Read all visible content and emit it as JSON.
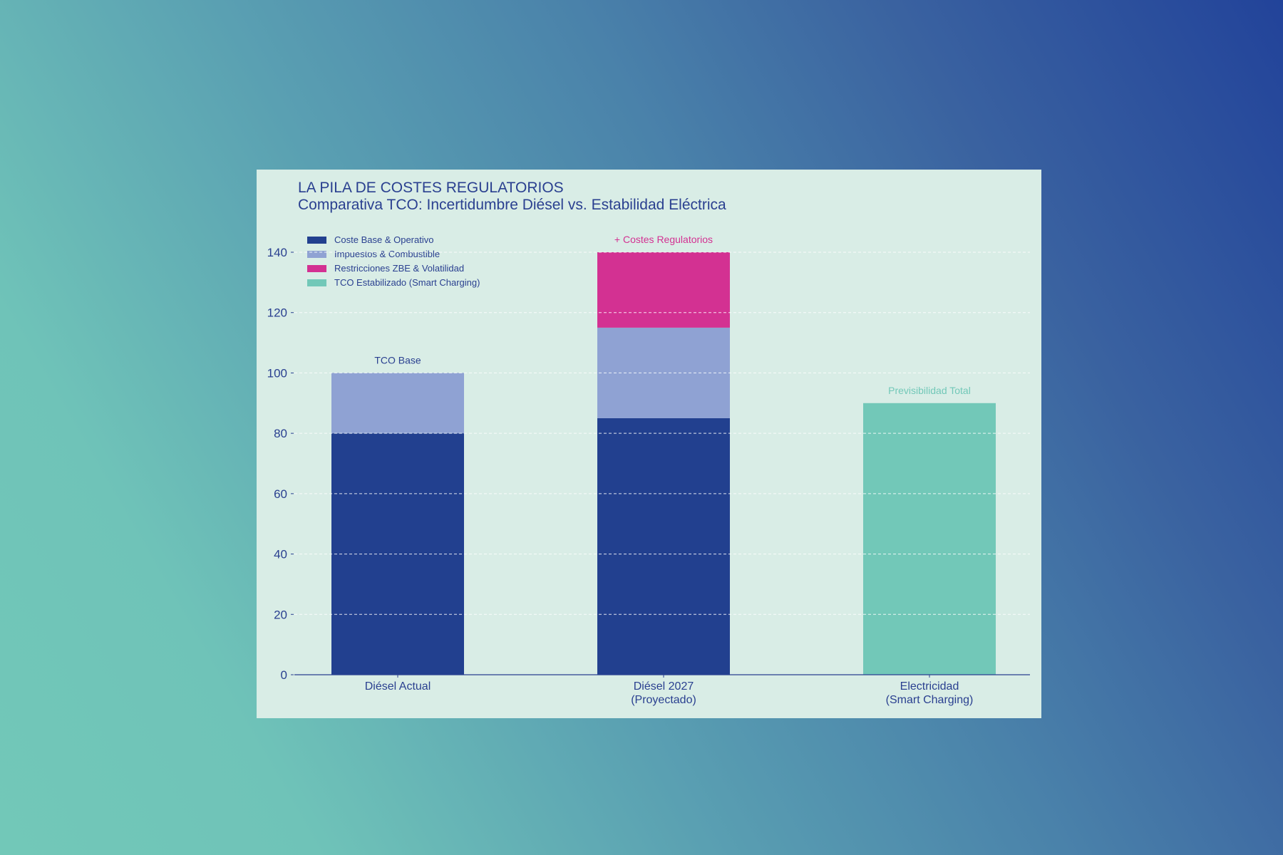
{
  "chart_data": {
    "type": "bar",
    "stacked": true,
    "title": "LA PILA DE COSTES REGULATORIOS",
    "subtitle": "Comparativa TCO: Incertidumbre Diésel vs. Estabilidad Eléctrica",
    "xlabel": "",
    "ylabel": "",
    "ylim": [
      0,
      140
    ],
    "yticks": [
      0,
      20,
      40,
      60,
      80,
      100,
      120,
      140
    ],
    "grid": true,
    "legend_position": "top-left",
    "categories": [
      [
        "Diésel Actual"
      ],
      [
        "Diésel 2027",
        "(Proyectado)"
      ],
      [
        "Electricidad",
        "(Smart Charging)"
      ]
    ],
    "series": [
      {
        "name": "Coste Base & Operativo",
        "color": "#22408f",
        "values": [
          80,
          85,
          0
        ]
      },
      {
        "name": "Impuestos & Combustible",
        "color": "#8fa2d3",
        "values": [
          20,
          30,
          0
        ]
      },
      {
        "name": "Restricciones ZBE & Volatilidad",
        "color": "#d33192",
        "values": [
          0,
          25,
          0
        ]
      },
      {
        "name": "TCO Estabilizado (Smart Charging)",
        "color": "#72c8b8",
        "values": [
          0,
          0,
          90
        ]
      }
    ],
    "annotations": [
      {
        "text": "TCO Base",
        "category": 0,
        "value": 100,
        "color": "#2a4090"
      },
      {
        "text": "+ Costes Regulatorios",
        "category": 1,
        "value": 140,
        "color": "#d33192"
      },
      {
        "text": "Previsibilidad Total",
        "category": 2,
        "value": 90,
        "color": "#72c8b8"
      }
    ]
  },
  "colors": {
    "axis": "#2a4090",
    "grid": "#ffffff",
    "panel": "#d9ede6"
  }
}
